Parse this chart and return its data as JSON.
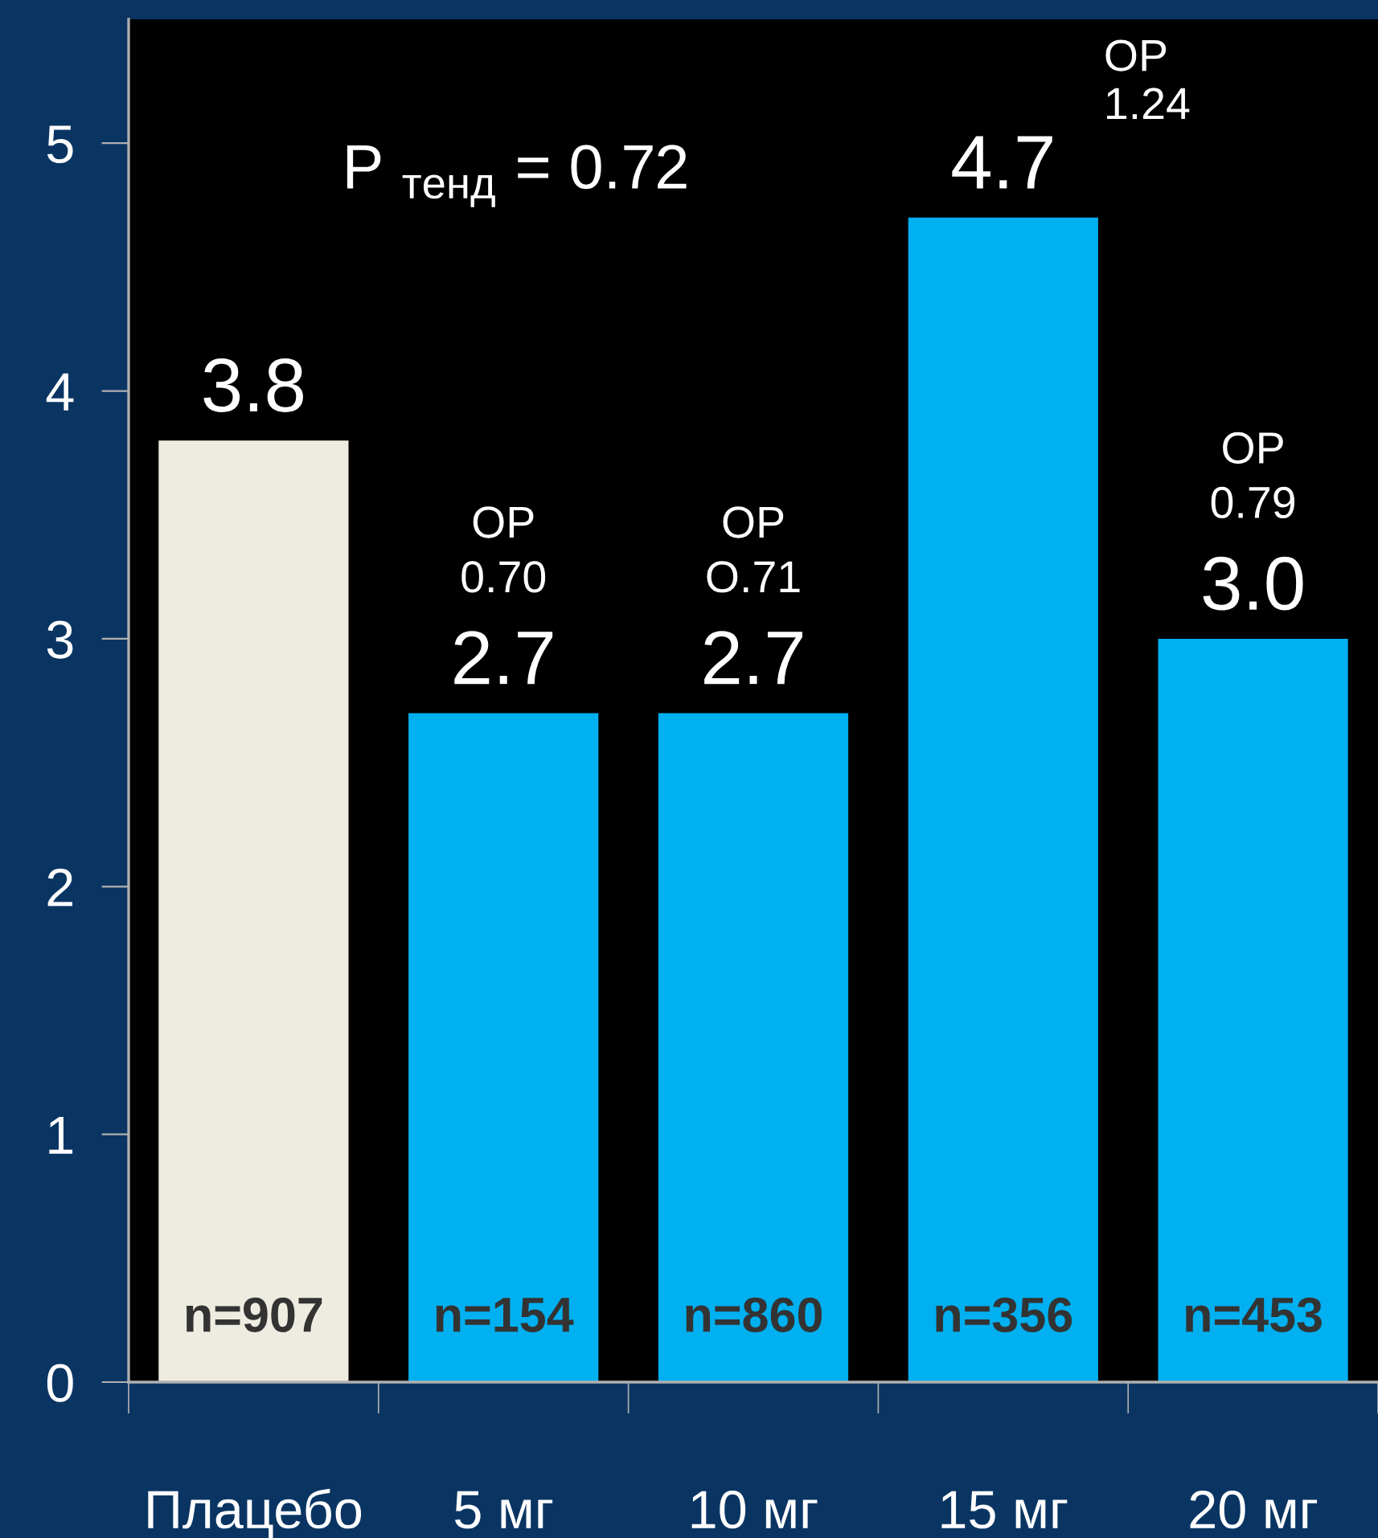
{
  "chart_data": {
    "type": "bar",
    "categories": [
      "Плацебо",
      "5 мг",
      "10 мг",
      "15 мг",
      "20 мг"
    ],
    "values": [
      3.8,
      2.7,
      2.7,
      4.7,
      3.0
    ],
    "colors": [
      "#eeebe0",
      "#00b0f0",
      "#00b0f0",
      "#00b0f0",
      "#00b0f0"
    ],
    "ylim": [
      0,
      5.5
    ],
    "yticks": [
      0,
      1,
      2,
      3,
      4,
      5
    ],
    "grid": false,
    "value_labels": [
      "3.8",
      "2.7",
      "2.7",
      "4.7",
      "3.0"
    ],
    "annotations": [
      "P $_{тенд}$ = 0.72",
      "ОР\n0.70",
      "ОР\nO.71",
      "ОР\n1.24",
      "ОР\n0.79",
      "n=907",
      "n=154",
      "n=860",
      "n=356",
      "n=453"
    ]
  }
}
